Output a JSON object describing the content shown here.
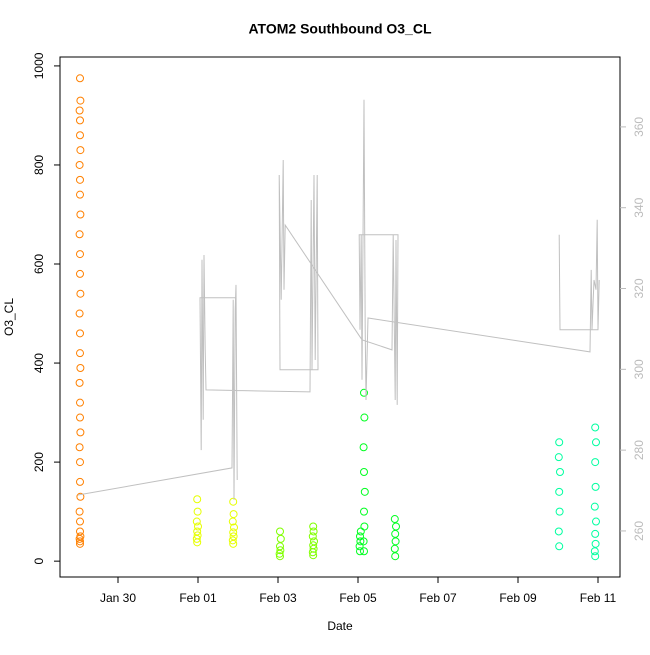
{
  "chart_data": {
    "type": "scatter",
    "title": "ATOM2 Southbound O3_CL",
    "x_label": "Date",
    "y_label": "O3_CL",
    "xlim": [
      28.55,
      42.55
    ],
    "xticks": [
      {
        "value": 30,
        "label": "Jan 30"
      },
      {
        "value": 32,
        "label": "Feb 01"
      },
      {
        "value": 34,
        "label": "Feb 03"
      },
      {
        "value": 36,
        "label": "Feb 05"
      },
      {
        "value": 38,
        "label": "Feb 07"
      },
      {
        "value": 40,
        "label": "Feb 09"
      },
      {
        "value": 42,
        "label": "Feb 11"
      }
    ],
    "ylim": [
      -32,
      1018
    ],
    "yticks": [
      0,
      200,
      400,
      600,
      800,
      1000
    ],
    "y2lim": [
      248.6,
      377.3
    ],
    "y2ticks": [
      260,
      280,
      300,
      320,
      340,
      360
    ],
    "series": [
      {
        "color": "#ff8000",
        "x": [
          29.05,
          29.05,
          29.04,
          29.06,
          29.05,
          29.05,
          29.04,
          29.06,
          29.05,
          29.05,
          29.04,
          29.06,
          29.05,
          29.05,
          29.04,
          29.06,
          29.05,
          29.05,
          29.04,
          29.06,
          29.05,
          29.05,
          29.04,
          29.06,
          29.05,
          29.05,
          29.04,
          29.06,
          29.05,
          29.05,
          29.04,
          29.06,
          29.05
        ],
        "values": [
          35,
          40,
          45,
          50,
          60,
          80,
          100,
          130,
          160,
          200,
          230,
          260,
          290,
          320,
          360,
          390,
          420,
          460,
          500,
          540,
          580,
          620,
          660,
          700,
          740,
          770,
          800,
          830,
          860,
          890,
          910,
          930,
          975
        ]
      },
      {
        "color": "#e6ff00",
        "x": [
          31.98,
          31.97,
          31.99,
          31.98,
          32.0,
          31.97,
          31.99,
          31.98,
          32.88,
          32.87,
          32.89,
          32.88,
          32.9,
          32.87,
          32.89,
          32.88
        ],
        "values": [
          38,
          45,
          52,
          60,
          70,
          80,
          100,
          125,
          35,
          42,
          50,
          58,
          68,
          80,
          95,
          120
        ]
      },
      {
        "color": "#80ff00",
        "x": [
          34.05,
          34.04,
          34.06,
          34.05,
          34.07,
          34.05,
          34.88,
          34.87,
          34.89,
          34.88,
          34.9,
          34.87,
          34.89,
          34.88
        ],
        "values": [
          10,
          15,
          22,
          30,
          45,
          60,
          12,
          18,
          25,
          32,
          40,
          50,
          60,
          70
        ]
      },
      {
        "color": "#00ff20",
        "x": [
          36.05,
          36.04,
          36.06,
          36.05,
          36.07,
          36.15,
          36.14,
          36.16,
          36.15,
          36.17,
          36.15,
          36.14,
          36.16,
          36.15,
          36.93,
          36.92,
          36.94,
          36.93,
          36.95,
          36.92
        ],
        "values": [
          20,
          30,
          40,
          50,
          60,
          20,
          40,
          70,
          100,
          140,
          180,
          230,
          290,
          340,
          10,
          25,
          40,
          55,
          70,
          85
        ]
      },
      {
        "color": "#00ffa0",
        "x": [
          41.03,
          41.02,
          41.04,
          41.03,
          41.05,
          41.02,
          41.03,
          41.93,
          41.92,
          41.94,
          41.93,
          41.95,
          41.92,
          41.94,
          41.93,
          41.95,
          41.93
        ],
        "values": [
          30,
          60,
          100,
          140,
          180,
          210,
          240,
          10,
          20,
          35,
          55,
          80,
          110,
          150,
          200,
          240,
          270
        ]
      },
      {
        "color": "#c0c0c0",
        "axis": "y2",
        "x": [
          29.0,
          32.85,
          32.88,
          32.9,
          32.93,
          32.95,
          32.98,
          32.95,
          32.05,
          32.08,
          32.1,
          32.13,
          32.15,
          32.18,
          32.2,
          34.8,
          34.83,
          34.85,
          34.9,
          34.93,
          34.98,
          35.0,
          34.05,
          34.03,
          34.08,
          34.13,
          34.15,
          34.18,
          36.1,
          36.85,
          36.88,
          36.93,
          36.95,
          36.98,
          37.0,
          36.88,
          36.03,
          36.05,
          36.08,
          36.1,
          36.15,
          36.18,
          36.2,
          36.25,
          41.8,
          41.83,
          41.85,
          41.9,
          41.95,
          41.98,
          42.0,
          42.03,
          42.0,
          41.05,
          41.03
        ],
        "values": [
          268.9,
          275.6,
          317.2,
          267.7,
          314.7,
          320.9,
          272.6,
          317.7,
          317.7,
          280.0,
          327.1,
          287.5,
          328.3,
          304.8,
          294.9,
          294.4,
          341.9,
          299.9,
          348.1,
          302.3,
          348.1,
          299.9,
          299.9,
          348.1,
          317.2,
          351.8,
          319.7,
          335.7,
          307.3,
          304.8,
          333.3,
          292.4,
          332.0,
          291.2,
          333.3,
          333.3,
          333.3,
          309.8,
          333.3,
          297.4,
          366.7,
          309.8,
          292.4,
          312.7,
          304.3,
          324.6,
          309.8,
          322.1,
          319.7,
          337.0,
          309.8,
          322.1,
          309.8,
          309.8,
          333.3
        ]
      }
    ]
  }
}
